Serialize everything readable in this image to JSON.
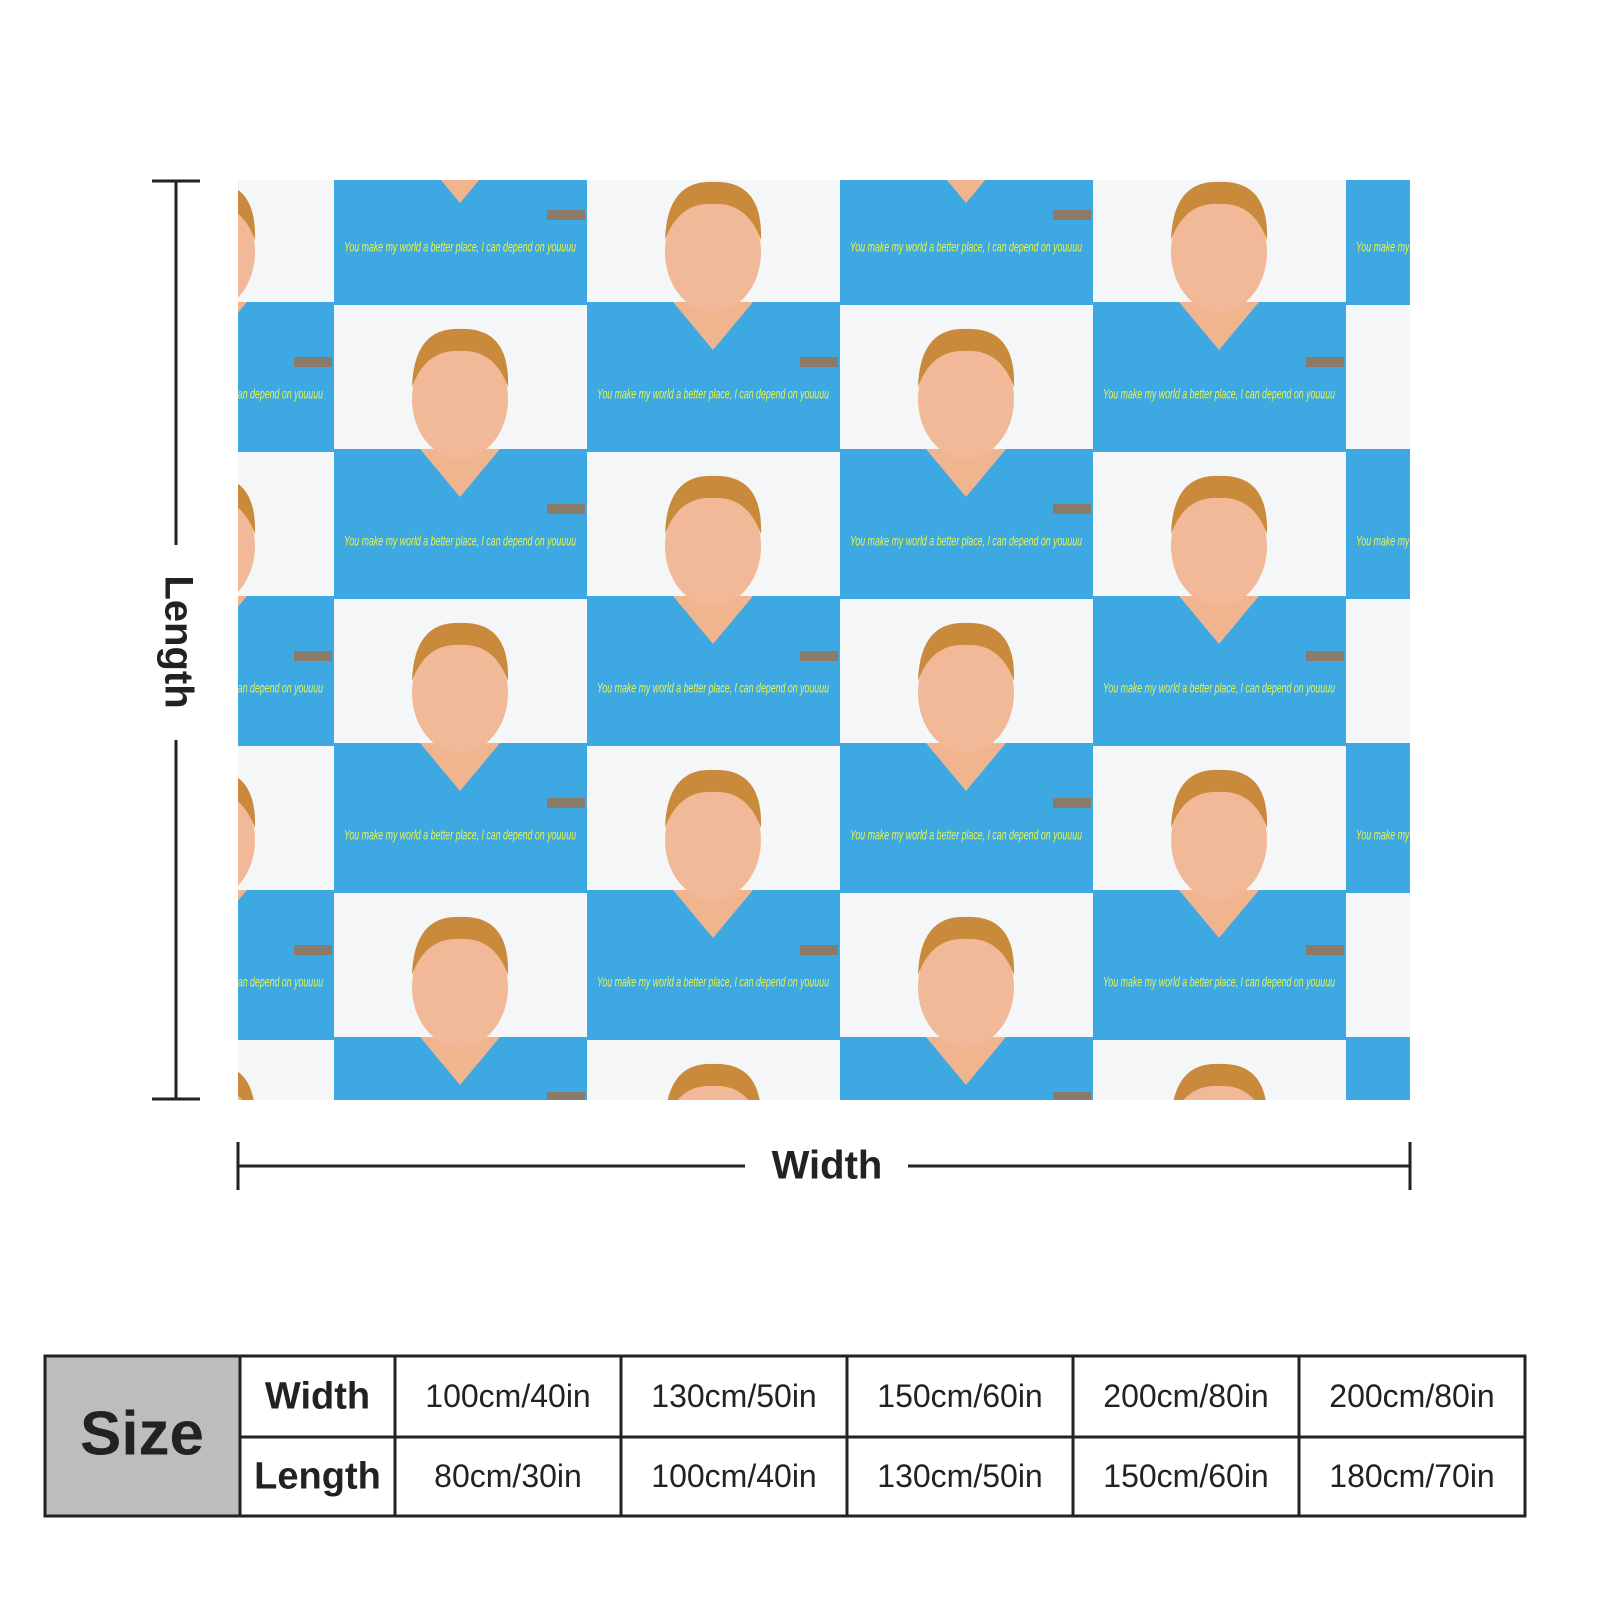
{
  "blanket": {
    "pattern_text": "You make my world a better place, I can depend on youuuu"
  },
  "dimensions": {
    "length_label": "Length",
    "width_label": "Width"
  },
  "size_table": {
    "title": "Size",
    "rows": [
      {
        "label": "Width",
        "values": [
          "100cm/40in",
          "130cm/50in",
          "150cm/60in",
          "200cm/80in",
          "200cm/80in"
        ]
      },
      {
        "label": "Length",
        "values": [
          "80cm/30in",
          "100cm/40in",
          "130cm/50in",
          "150cm/60in",
          "180cm/70in"
        ]
      }
    ]
  }
}
